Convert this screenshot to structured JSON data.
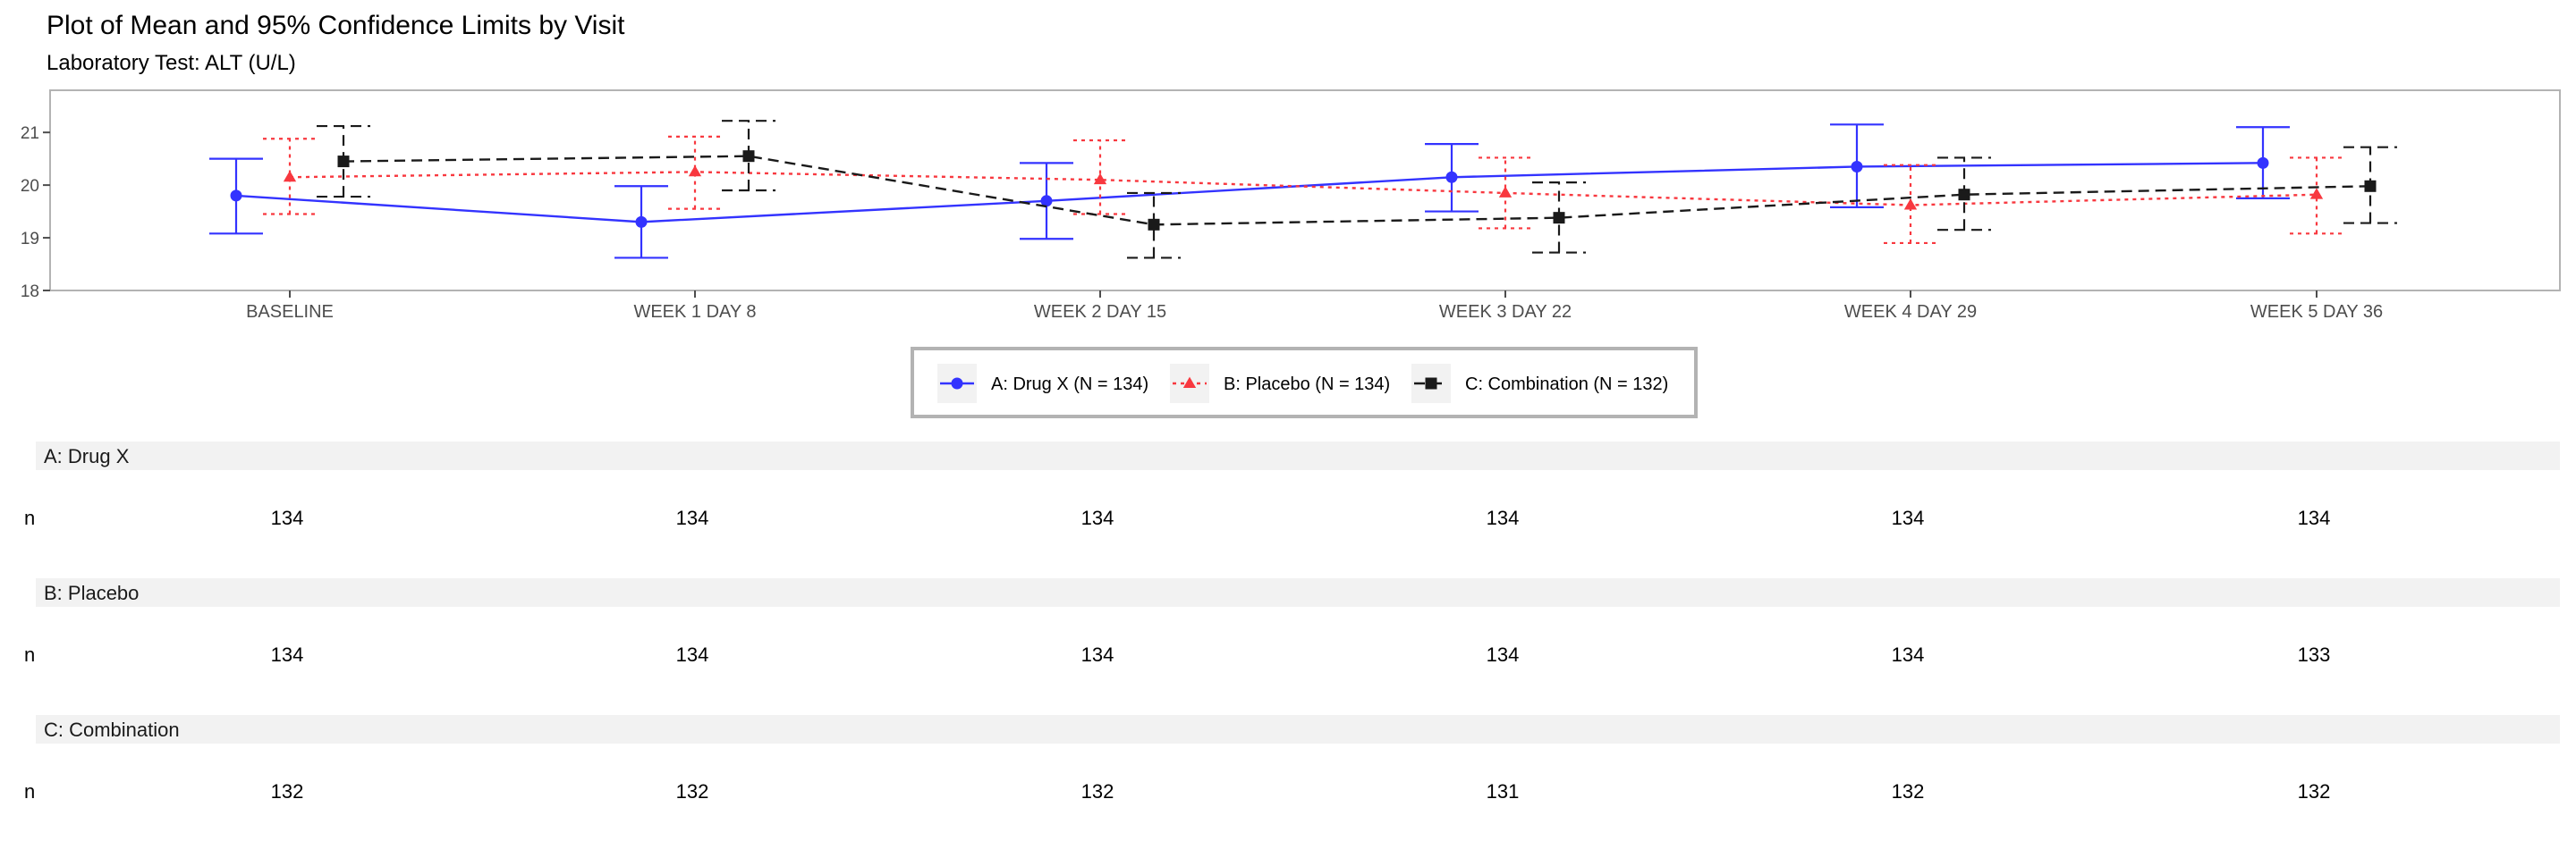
{
  "chart_data": {
    "type": "line",
    "title": "Plot of Mean and 95% Confidence Limits by Visit",
    "subtitle": "Laboratory Test: ALT (U/L)",
    "categories": [
      "BASELINE",
      "WEEK 1 DAY 8",
      "WEEK 2 DAY 15",
      "WEEK 3 DAY 22",
      "WEEK 4 DAY 29",
      "WEEK 5 DAY 36"
    ],
    "ylim": [
      18,
      21.8
    ],
    "yticks": [
      18,
      19,
      20,
      21
    ],
    "grid": false,
    "legend_position": "bottom",
    "series": [
      {
        "name": "A: Drug X (N = 134)",
        "color": "#3333ff",
        "marker": "circle",
        "dash": "solid",
        "values": [
          19.8,
          19.3,
          19.7,
          20.15,
          20.35,
          20.42
        ],
        "lower": [
          19.08,
          18.62,
          18.98,
          19.5,
          19.58,
          19.75
        ],
        "upper": [
          20.5,
          19.98,
          20.42,
          20.78,
          21.15,
          21.1
        ]
      },
      {
        "name": "B: Placebo (N = 134)",
        "color": "#f8383f",
        "marker": "triangle",
        "dash": "dotted",
        "values": [
          20.15,
          20.25,
          20.1,
          19.85,
          19.62,
          19.82
        ],
        "lower": [
          19.45,
          19.55,
          19.45,
          19.18,
          18.9,
          19.08
        ],
        "upper": [
          20.88,
          20.92,
          20.85,
          20.52,
          20.38,
          20.52
        ]
      },
      {
        "name": "C: Combination (N = 132)",
        "color": "#1a1a1a",
        "marker": "square",
        "dash": "dashed",
        "values": [
          20.45,
          20.55,
          19.25,
          19.38,
          19.82,
          19.98
        ],
        "lower": [
          19.78,
          19.9,
          18.62,
          18.72,
          19.15,
          19.28
        ],
        "upper": [
          21.12,
          21.22,
          19.85,
          20.05,
          20.52,
          20.72
        ]
      }
    ]
  },
  "table": {
    "row_label": "n",
    "groups": [
      {
        "name": "A: Drug X",
        "values": [
          "134",
          "134",
          "134",
          "134",
          "134",
          "134"
        ]
      },
      {
        "name": "B: Placebo",
        "values": [
          "134",
          "134",
          "134",
          "134",
          "134",
          "133"
        ]
      },
      {
        "name": "C: Combination",
        "values": [
          "132",
          "132",
          "132",
          "131",
          "132",
          "132"
        ]
      }
    ]
  }
}
